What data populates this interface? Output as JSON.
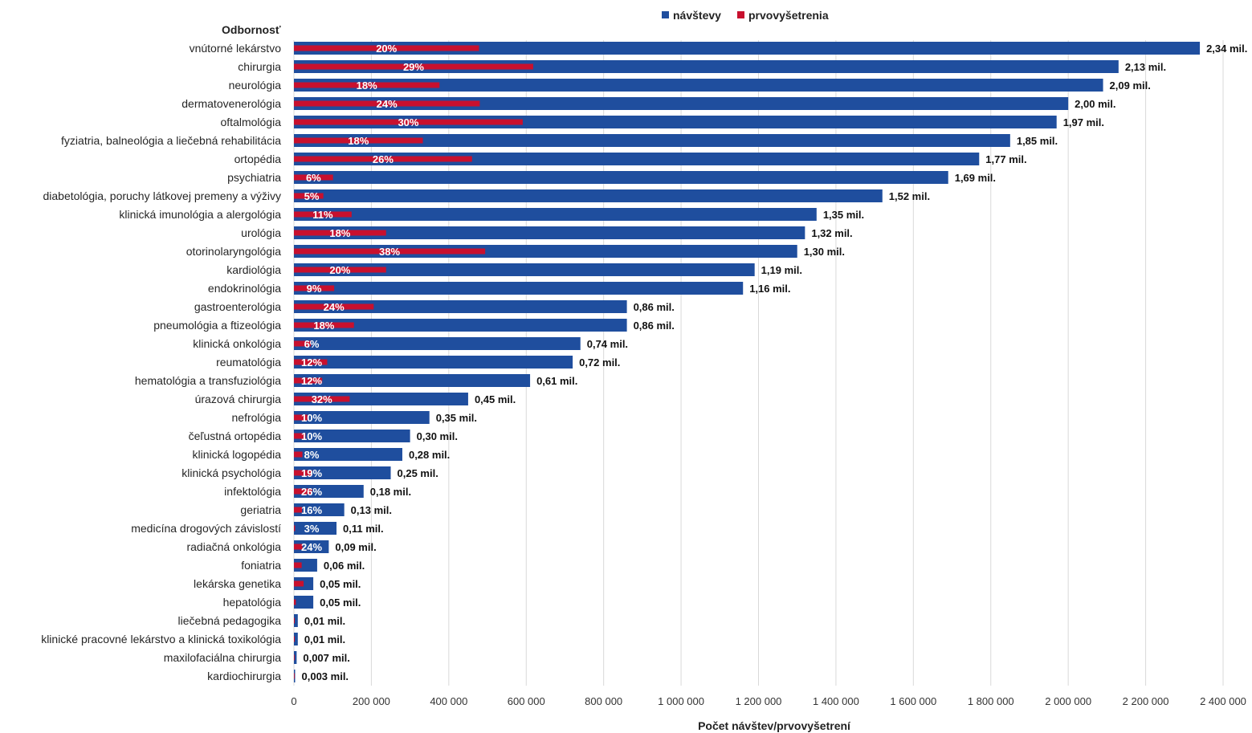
{
  "chart_data": {
    "type": "bar",
    "orientation": "horizontal",
    "title": "",
    "category_header": "Odbornosť",
    "xlabel": "Počet návštev/prvovyšetrení",
    "xlim": [
      0,
      2400000
    ],
    "xticks": [
      0,
      200000,
      400000,
      600000,
      800000,
      1000000,
      1200000,
      1400000,
      1600000,
      1800000,
      2000000,
      2200000,
      2400000
    ],
    "xtick_labels": [
      "0",
      "200 000",
      "400 000",
      "600 000",
      "800 000",
      "1 000 000",
      "1 200 000",
      "1 400 000",
      "1 600 000",
      "1 800 000",
      "2 000 000",
      "2 200 000",
      "2 400 000"
    ],
    "grid": "vertical",
    "legend_position": "top-center",
    "categories": [
      "vnútorné lekárstvo",
      "chirurgia",
      "neurológia",
      "dermatovenerológia",
      "oftalmológia",
      "fyziatria, balneológia a liečebná rehabilitácia",
      "ortopédia",
      "psychiatria",
      "diabetológia, poruchy látkovej premeny a výživy",
      "klinická imunológia a alergológia",
      "urológia",
      "otorinolaryngológia",
      "kardiológia",
      "endokrinológia",
      "gastroenterológia",
      "pneumológia a ftizeológia",
      "klinická onkológia",
      "reumatológia",
      "hematológia a transfuziológia",
      "úrazová chirurgia",
      "nefrológia",
      "čeľustná ortopédia",
      "klinická logopédia",
      "klinická psychológia",
      "infektológia",
      "geriatria",
      "medicína drogových závislostí",
      "radiačná onkológia",
      "foniatria",
      "lekárska genetika",
      "hepatológia",
      "liečebná pedagogika",
      "klinické pracovné lekárstvo a klinická toxikológia",
      "maxilofaciálna chirurgia",
      "kardiochirurgia"
    ],
    "series": [
      {
        "name": "návštevy",
        "color": "#1f4e9e",
        "values": [
          2340000,
          2130000,
          2090000,
          2000000,
          1970000,
          1850000,
          1770000,
          1690000,
          1520000,
          1350000,
          1320000,
          1300000,
          1190000,
          1160000,
          860000,
          860000,
          740000,
          720000,
          610000,
          450000,
          350000,
          300000,
          280000,
          250000,
          180000,
          130000,
          110000,
          90000,
          60000,
          50000,
          50000,
          10000,
          10000,
          7000,
          3000
        ],
        "labels": [
          "2,34 mil.",
          "2,13 mil.",
          "2,09 mil.",
          "2,00 mil.",
          "1,97 mil.",
          "1,85 mil.",
          "1,77 mil.",
          "1,69 mil.",
          "1,52 mil.",
          "1,35 mil.",
          "1,32 mil.",
          "1,30 mil.",
          "1,19 mil.",
          "1,16 mil.",
          "0,86 mil.",
          "0,86 mil.",
          "0,74 mil.",
          "0,72 mil.",
          "0,61 mil.",
          "0,45 mil.",
          "0,35 mil.",
          "0,30 mil.",
          "0,28 mil.",
          "0,25 mil.",
          "0,18 mil.",
          "0,13 mil.",
          "0,11 mil.",
          "0,09 mil.",
          "0,06 mil.",
          "0,05 mil.",
          "0,05 mil.",
          "0,01 mil.",
          "0,01 mil.",
          "0,007 mil.",
          "0,003 mil."
        ]
      },
      {
        "name": "prvovyšetrenia",
        "color": "#c8102e",
        "values": [
          478000,
          618000,
          376000,
          480000,
          591000,
          333000,
          460000,
          101000,
          76000,
          149000,
          238000,
          494000,
          238000,
          104000,
          206000,
          155000,
          44000,
          86000,
          73000,
          144000,
          35000,
          30000,
          22000,
          47000,
          47000,
          21000,
          3000,
          22000,
          20000,
          25000,
          5000,
          2000,
          2000,
          1000,
          500
        ],
        "labels": [
          "20%",
          "29%",
          "18%",
          "24%",
          "30%",
          "18%",
          "26%",
          "6%",
          "5%",
          "11%",
          "18%",
          "38%",
          "20%",
          "9%",
          "24%",
          "18%",
          "6%",
          "12%",
          "12%",
          "32%",
          "10%",
          "10%",
          "8%",
          "19%",
          "26%",
          "16%",
          "3%",
          "24%",
          "",
          "",
          "",
          "",
          "",
          "",
          ""
        ]
      }
    ]
  }
}
